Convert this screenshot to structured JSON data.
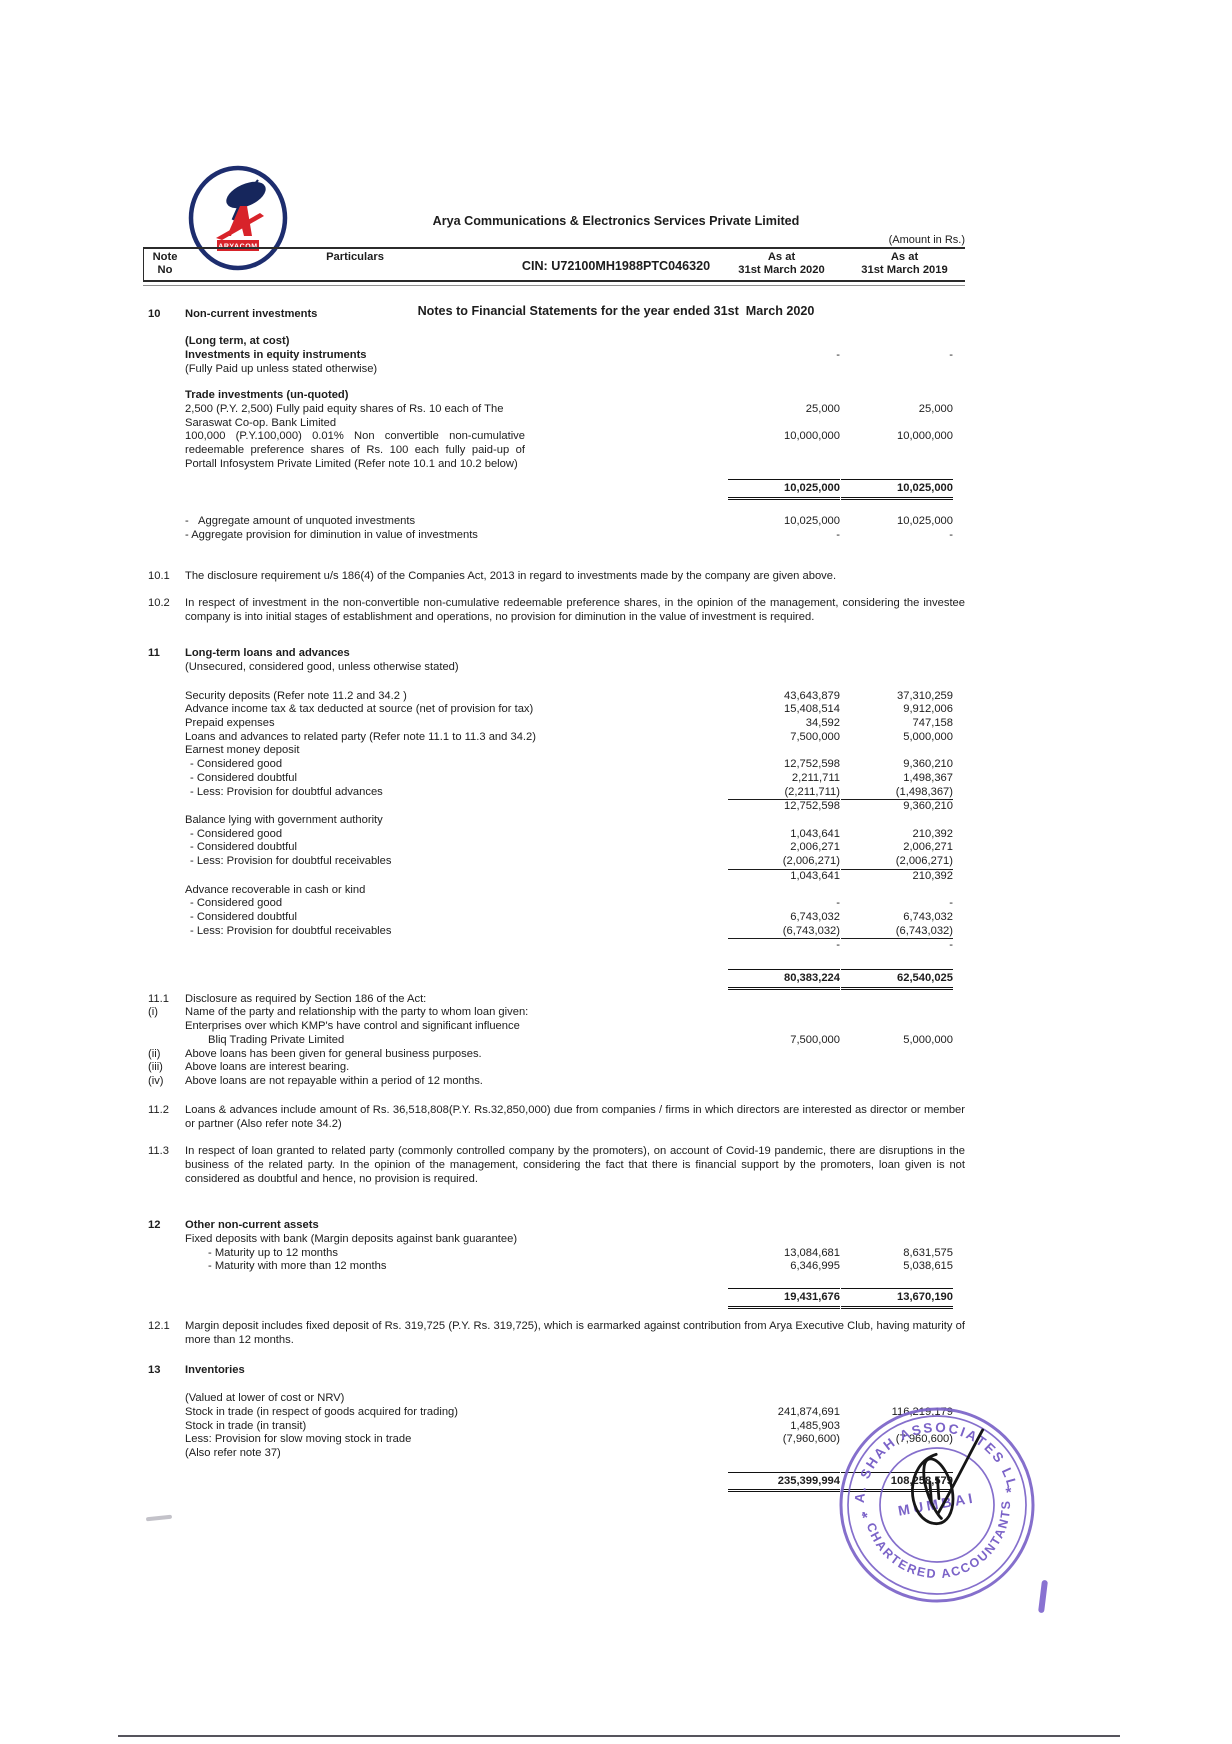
{
  "header": {
    "company": "Arya Communications & Electronics Services Private Limited",
    "cin": "CIN: U72100MH1988PTC046320",
    "title": "Notes to Financial Statements for the year ended 31st  March 2020"
  },
  "logo": {
    "brand": "ARYACOM",
    "navy": "#1d2d6e",
    "red": "#d8232a"
  },
  "amount_note": "(Amount in Rs.)",
  "table_header": {
    "note_line1": "Note",
    "note_line2": "No",
    "particulars": "Particulars",
    "col2020_line1": "As at",
    "col2020_line2": "31st March 2020",
    "col2019_line1": "As at",
    "col2019_line2": "31st March 2019"
  },
  "rows": [
    {
      "spacer": 16
    },
    {
      "note": "10",
      "text": "Non-current investments",
      "bold": true
    },
    {
      "spacer": 13
    },
    {
      "text": "(Long term, at cost)",
      "bold": true
    },
    {
      "text": "Investments in equity instruments",
      "bold": true,
      "v2020": "-",
      "v2019": "-"
    },
    {
      "text": "(Fully Paid up unless stated otherwise)"
    },
    {
      "spacer": 13
    },
    {
      "text": "Trade investments (un-quoted)",
      "bold": true
    },
    {
      "text": "2,500 (P.Y. 2,500) Fully paid equity shares of Rs. 10 each of The Saraswat Co-op. Bank Limited",
      "v2020": "25,000",
      "v2019": "25,000",
      "narrow": true
    },
    {
      "text": "100,000 (P.Y.100,000) 0.01% Non convertible non-cumulative redeemable preference shares of Rs. 100 each fully paid-up of Portall Infosystem Private Limited (Refer note 10.1 and 10.2 below)",
      "v2020": "10,000,000",
      "v2019": "10,000,000",
      "narrow": true,
      "justify": true
    },
    {
      "spacer": 6
    },
    {
      "v2020": "10,025,000",
      "v2019": "10,025,000",
      "rule": "total"
    },
    {
      "spacer": 12
    },
    {
      "text": "-   Aggregate amount of unquoted investments",
      "v2020": "10,025,000",
      "v2019": "10,025,000"
    },
    {
      "text": "- Aggregate provision for diminution in value of investments",
      "v2020": "-",
      "v2019": "-"
    },
    {
      "spacer": 27
    },
    {
      "note": "10.1",
      "text": "The disclosure requirement u/s 186(4) of the Companies Act, 2013 in regard to investments made by the company are given above.",
      "para": true
    },
    {
      "spacer": 14
    },
    {
      "note": "10.2",
      "text": "In respect of investment in the non-convertible non-cumulative redeemable preference shares, in the opinion of the management, considering the investee company is into initial stages of establishment and operations, no provision for diminution in the value of investment is required.",
      "para": true,
      "justify": true
    },
    {
      "spacer": 22
    },
    {
      "note": "11",
      "text": "Long-term loans and advances",
      "bold": true
    },
    {
      "text": "(Unsecured, considered good, unless otherwise stated)"
    },
    {
      "spacer": 15
    },
    {
      "text": "Security deposits (Refer note 11.2 and 34.2 )",
      "v2020": "43,643,879",
      "v2019": "37,310,259"
    },
    {
      "text": "Advance income tax & tax deducted at source (net of provision for tax)",
      "v2020": "15,408,514",
      "v2019": "9,912,006"
    },
    {
      "text": "Prepaid expenses",
      "v2020": "34,592",
      "v2019": "747,158"
    },
    {
      "text": "Loans and advances to related party (Refer note 11.1 to 11.3 and 34.2)",
      "v2020": "7,500,000",
      "v2019": "5,000,000"
    },
    {
      "text": "Earnest money deposit"
    },
    {
      "text": "- Considered good",
      "indent": 1,
      "v2020": "12,752,598",
      "v2019": "9,360,210"
    },
    {
      "text": "- Considered doubtful",
      "indent": 1,
      "v2020": "2,211,711",
      "v2019": "1,498,367"
    },
    {
      "text": "- Less: Provision for doubtful advances",
      "indent": 1,
      "v2020": "(2,211,711)",
      "v2019": "(1,498,367)",
      "rule": "less"
    },
    {
      "v2020": "12,752,598",
      "v2019": "9,360,210"
    },
    {
      "text": "Balance lying with government authority"
    },
    {
      "text": "- Considered good",
      "indent": 1,
      "v2020": "1,043,641",
      "v2019": "210,392"
    },
    {
      "text": "- Considered doubtful",
      "indent": 1,
      "v2020": "2,006,271",
      "v2019": "2,006,271"
    },
    {
      "text": "- Less: Provision for doubtful receivables",
      "indent": 1,
      "v2020": "(2,006,271)",
      "v2019": "(2,006,271)",
      "rule": "less"
    },
    {
      "v2020": "1,043,641",
      "v2019": "210,392"
    },
    {
      "text": "Advance recoverable in cash or kind"
    },
    {
      "text": "- Considered good",
      "indent": 1,
      "v2020": "-",
      "v2019": "-"
    },
    {
      "text": "- Considered doubtful",
      "indent": 1,
      "v2020": "6,743,032",
      "v2019": "6,743,032"
    },
    {
      "text": "- Less: Provision for doubtful receivables",
      "indent": 1,
      "v2020": "(6,743,032)",
      "v2019": "(6,743,032)",
      "rule": "less"
    },
    {
      "v2020": "-",
      "v2019": "-"
    },
    {
      "spacer": 14
    },
    {
      "v2020": "80,383,224",
      "v2019": "62,540,025",
      "rule": "total"
    },
    {
      "note": "11.1",
      "text": "Disclosure as required by Section 186 of the Act:"
    },
    {
      "note": "(i)",
      "text": "Name of the party and relationship with the party to whom loan given:"
    },
    {
      "text": "Enterprises over which KMP's have control and significant influence"
    },
    {
      "text": "Bliq Trading Private Limited",
      "indent": 2,
      "v2020": "7,500,000",
      "v2019": "5,000,000"
    },
    {
      "note": "(ii)",
      "text": "Above loans has been given for general business purposes."
    },
    {
      "note": "(iii)",
      "text": "Above loans are interest bearing."
    },
    {
      "note": "(iv)",
      "text": "Above loans are not repayable within a period of 12 months."
    },
    {
      "spacer": 15
    },
    {
      "note": "11.2",
      "text": "Loans & advances include amount of Rs. 36,518,808(P.Y. Rs.32,850,000) due from companies / firms in which directors are interested as director or member or partner (Also refer note 34.2)",
      "para": true,
      "justify": true
    },
    {
      "spacer": 14
    },
    {
      "note": "11.3",
      "text": "In respect of loan granted to related party (commonly controlled company by the promoters), on account of Covid-19 pandemic, there are disruptions in the business of the related party. In the opinion of the management, considering the fact that there is financial support by the promoters, loan given is not considered as doubtful and hence, no provision is required.",
      "para": true,
      "justify": true
    },
    {
      "spacer": 32
    },
    {
      "note": "12",
      "text": "Other non-current assets",
      "bold": true
    },
    {
      "text": "Fixed deposits with bank (Margin deposits against bank guarantee)"
    },
    {
      "text": "- Maturity up to 12 months",
      "indent": 2,
      "v2020": "13,084,681",
      "v2019": "8,631,575"
    },
    {
      "text": "- Maturity with more than 12 months",
      "indent": 2,
      "v2020": "6,346,995",
      "v2019": "5,038,615"
    },
    {
      "spacer": 12
    },
    {
      "v2020": "19,431,676",
      "v2019": "13,670,190",
      "rule": "total"
    },
    {
      "spacer": 8
    },
    {
      "note": "12.1",
      "text": "Margin deposit includes fixed deposit of Rs. 319,725 (P.Y. Rs. 319,725), which is earmarked against contribution from Arya Executive Club, having maturity of more than 12 months.",
      "para": true,
      "justify": true
    },
    {
      "spacer": 16
    },
    {
      "note": "13",
      "text": "Inventories",
      "bold": true
    },
    {
      "spacer": 15
    },
    {
      "text": "(Valued at lower of cost or NRV)"
    },
    {
      "text": "Stock in trade (in respect of goods acquired for trading)",
      "v2020": "241,874,691",
      "v2019": "116,219,179"
    },
    {
      "text": "Stock in trade (in transit)",
      "v2020": "1,485,903",
      "v2019": "-"
    },
    {
      "text": "Less: Provision for slow moving stock in trade",
      "v2020": "(7,960,600)",
      "v2019": "(7,960,600)"
    },
    {
      "text": "(Also refer note 37)"
    },
    {
      "spacer": 9
    },
    {
      "v2020": "235,399,994",
      "v2019": "108,258,579",
      "rule": "total"
    }
  ],
  "stamp": {
    "arc_top": "N. A. SHAH ASSOCIATES LLP",
    "arc_bottom": "CHARTERED ACCOUNTANTS",
    "center": "MUMBAI",
    "star_left": "*",
    "star_right": "*",
    "color": "#7b63c8"
  }
}
